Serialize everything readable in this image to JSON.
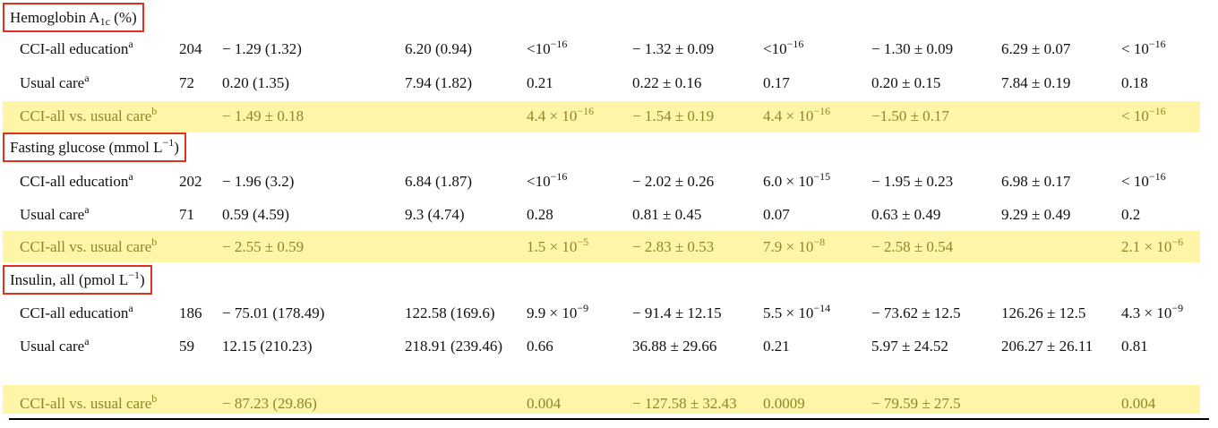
{
  "sections": [
    {
      "title": {
        "base": "Hemoglobin A",
        "sub": "1c",
        "rest": " (%)"
      },
      "rows": [
        {
          "label": {
            "base": "CCI-all education",
            "sup": "a"
          },
          "highlight": false,
          "cells": [
            "204",
            "− 1.29 (1.32)",
            "6.20 (0.94)",
            {
              "base": "<10",
              "sup": "−16"
            },
            "− 1.32 ± 0.09",
            {
              "base": "<10",
              "sup": "−16"
            },
            "− 1.30 ± 0.09",
            "6.29 ± 0.07",
            {
              "base": "< 10",
              "sup": "−16"
            }
          ]
        },
        {
          "label": {
            "base": "Usual care",
            "sup": "a"
          },
          "highlight": false,
          "cells": [
            "72",
            "0.20 (1.35)",
            "7.94 (1.82)",
            "0.21",
            "0.22 ± 0.16",
            "0.17",
            "0.20 ± 0.15",
            "7.84 ± 0.19",
            "0.18"
          ]
        },
        {
          "label": {
            "base": "CCI-all vs. usual care",
            "sup": "b"
          },
          "highlight": true,
          "cells": [
            null,
            "− 1.49 ± 0.18",
            null,
            {
              "base": "4.4 × 10",
              "sup": "−16"
            },
            "− 1.54 ± 0.19",
            {
              "base": "4.4 × 10",
              "sup": "−16"
            },
            "−1.50 ± 0.17",
            null,
            {
              "base": "< 10",
              "sup": "−16"
            }
          ]
        }
      ]
    },
    {
      "title": {
        "base": "Fasting glucose (mmol L",
        "sup": "−1",
        "rest": ")"
      },
      "rows": [
        {
          "label": {
            "base": "CCI-all education",
            "sup": "a"
          },
          "highlight": false,
          "cells": [
            "202",
            "− 1.96 (3.2)",
            "6.84 (1.87)",
            {
              "base": "<10",
              "sup": "−16"
            },
            "− 2.02 ± 0.26",
            {
              "base": "6.0 × 10",
              "sup": "−15"
            },
            "− 1.95 ± 0.23",
            "6.98 ± 0.17",
            {
              "base": "< 10",
              "sup": "−16"
            }
          ]
        },
        {
          "label": {
            "base": "Usual care",
            "sup": "a"
          },
          "highlight": false,
          "cells": [
            "71",
            "0.59 (4.59)",
            "9.3 (4.74)",
            "0.28",
            "0.81 ± 0.45",
            "0.07",
            "0.63 ± 0.49",
            "9.29 ± 0.49",
            "0.2"
          ]
        },
        {
          "label": {
            "base": "CCI-all vs. usual care",
            "sup": "b"
          },
          "highlight": true,
          "cells": [
            null,
            "− 2.55 ± 0.59",
            null,
            {
              "base": "1.5 × 10",
              "sup": "−5"
            },
            "− 2.83 ± 0.53",
            {
              "base": "7.9 × 10",
              "sup": "−8"
            },
            "− 2.58 ± 0.54",
            null,
            {
              "base": "2.1 × 10",
              "sup": "−6"
            }
          ]
        }
      ]
    },
    {
      "title": {
        "base": "Insulin, all (pmol L",
        "sup": "−1",
        "rest": ")"
      },
      "rows": [
        {
          "label": {
            "base": "CCI-all education",
            "sup": "a"
          },
          "highlight": false,
          "cells": [
            "186",
            "− 75.01 (178.49)",
            "122.58 (169.6)",
            {
              "base": "9.9 × 10",
              "sup": "−9"
            },
            "− 91.4 ± 12.15",
            {
              "base": "5.5 × 10",
              "sup": "−14"
            },
            "− 73.62 ± 12.5",
            "126.26 ± 12.5",
            {
              "base": "4.3 × 10",
              "sup": "−9"
            }
          ]
        },
        {
          "label": {
            "base": "Usual care",
            "sup": "a"
          },
          "highlight": false,
          "cells": [
            "59",
            "12.15 (210.23)",
            "218.91 (239.46)",
            "0.66",
            "36.88 ± 29.66",
            "0.21",
            "5.97 ± 24.52",
            "206.27 ± 26.11",
            "0.81"
          ]
        },
        {
          "label": {
            "base": "CCI-all vs. usual care",
            "sup": "b"
          },
          "highlight": true,
          "cells": [
            null,
            "− 87.23 (29.86)",
            null,
            "0.004",
            "− 127.58 ± 32.43",
            "0.0009",
            "− 79.59 ± 27.5",
            null,
            "0.004"
          ]
        }
      ]
    }
  ]
}
